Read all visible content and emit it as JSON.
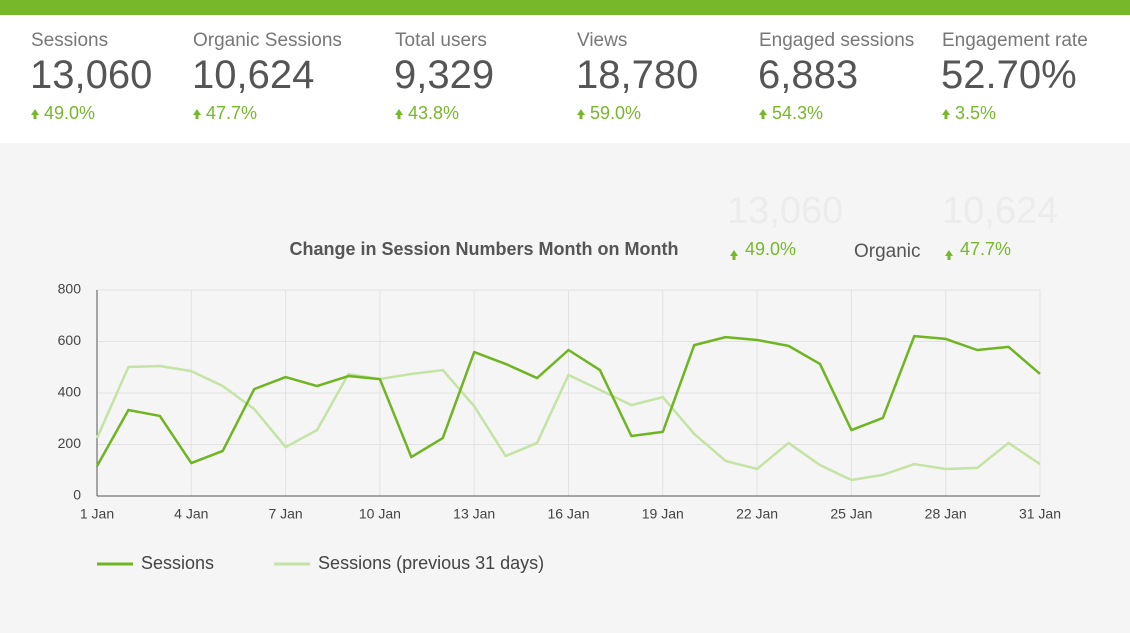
{
  "scorecards": [
    {
      "label": "Sessions",
      "value": "13,060",
      "change": "49.0%"
    },
    {
      "label": "Organic Sessions",
      "value": "10,624",
      "change": "47.7%"
    },
    {
      "label": "Total users",
      "value": "9,329",
      "change": "43.8%"
    },
    {
      "label": "Views",
      "value": "18,780",
      "change": "59.0%"
    },
    {
      "label": "Engaged sessions",
      "value": "6,883",
      "change": "54.3%"
    },
    {
      "label": "Engagement rate",
      "value": "52.70%",
      "change": "3.5%"
    }
  ],
  "overlay": {
    "sessions_value": "13,060",
    "sessions_change": "49.0%",
    "organic_label": "Organic",
    "organic_value": "10,624",
    "organic_change": "47.7%"
  },
  "chart_data": {
    "type": "line",
    "title": "Change in Session Numbers Month on Month",
    "categories": [
      "1 Jan",
      null,
      null,
      "4 Jan",
      null,
      null,
      "7 Jan",
      null,
      null,
      "10 Jan",
      null,
      null,
      "13 Jan",
      null,
      null,
      "16 Jan",
      null,
      null,
      "19 Jan",
      null,
      null,
      "22 Jan",
      null,
      null,
      "25 Jan",
      null,
      null,
      "28 Jan",
      null,
      null,
      "31 Jan"
    ],
    "series": [
      {
        "name": "Sessions",
        "color": "#6fb522",
        "values": [
          116,
          334,
          311,
          128,
          175,
          415,
          462,
          427,
          466,
          454,
          151,
          225,
          559,
          513,
          458,
          567,
          489,
          233,
          249,
          586,
          617,
          606,
          583,
          513,
          256,
          303,
          621,
          610,
          567,
          579,
          474
        ]
      },
      {
        "name": "Sessions (previous 31 days)",
        "color": "#c5e3a4",
        "values": [
          225,
          501,
          505,
          485,
          427,
          338,
          190,
          256,
          474,
          454,
          474,
          489,
          349,
          155,
          206,
          470,
          412,
          353,
          384,
          241,
          136,
          105,
          206,
          120,
          62,
          82,
          124,
          105,
          109,
          206,
          124
        ]
      }
    ],
    "ylim": [
      0,
      800
    ],
    "yticks": [
      0,
      200,
      400,
      600,
      800
    ],
    "grid": true,
    "legend": "bottom-left"
  }
}
